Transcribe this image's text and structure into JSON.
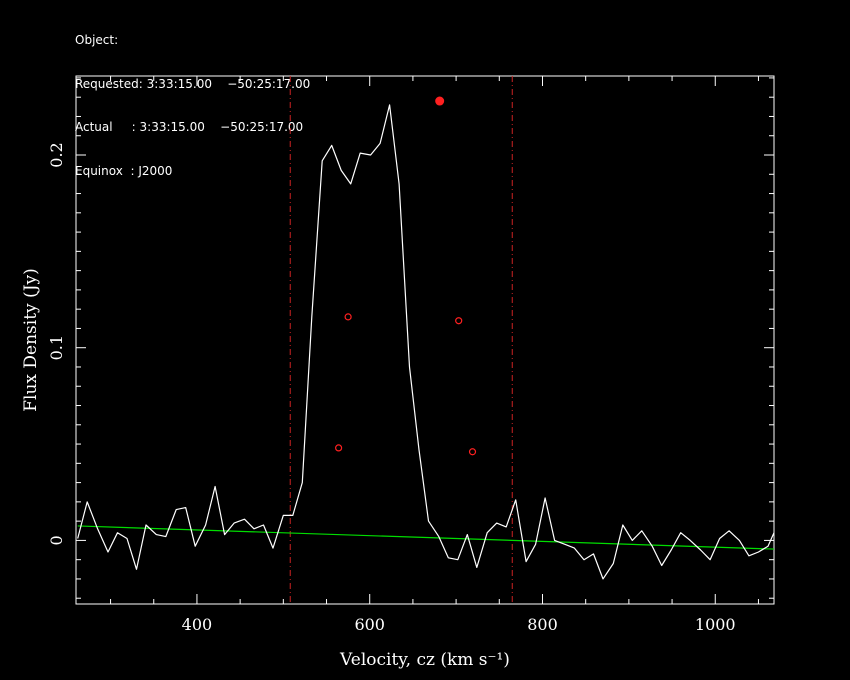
{
  "header": {
    "object_label": "Object:",
    "requested_label": "Requested:",
    "requested_ra": "3:33:15.00",
    "requested_dec": "−50:25:17.00",
    "actual_label": "Actual     :",
    "actual_ra": "3:33:15.00",
    "actual_dec": "−50:25:17.00",
    "equinox_label": "Equinox  :",
    "equinox_value": "J2000"
  },
  "chart_data": {
    "type": "line",
    "xlabel": "Velocity, cz (km s⁻¹)",
    "ylabel": "Flux Density (Jy)",
    "xlim": [
      260,
      1068
    ],
    "ylim": [
      -0.033,
      0.241
    ],
    "xticks": [
      400,
      600,
      800,
      1000
    ],
    "yticks": [
      0,
      0.1,
      0.2
    ],
    "ytick_labels": [
      "0",
      "0.1",
      "0.2"
    ],
    "grid": false,
    "colors": {
      "spectrum": "#ffffff",
      "baseline": "#00dd00",
      "markers": "#ff2020",
      "window_lines": "#cc2222",
      "axes": "#ffffff"
    },
    "series": [
      {
        "role": "spectrum",
        "x": [
          262,
          273,
          285,
          297,
          308,
          319,
          330,
          341,
          353,
          364,
          376,
          387,
          398,
          410,
          421,
          432,
          443,
          455,
          466,
          477,
          488,
          500,
          511,
          522,
          533,
          545,
          556,
          567,
          578,
          589,
          601,
          612,
          623,
          634,
          646,
          657,
          668,
          680,
          691,
          702,
          713,
          724,
          736,
          747,
          758,
          769,
          781,
          792,
          803,
          814,
          826,
          837,
          848,
          859,
          870,
          882,
          893,
          904,
          915,
          927,
          938,
          949,
          960,
          971,
          983,
          994,
          1005,
          1016,
          1028,
          1039,
          1050,
          1061,
          1068
        ],
        "y": [
          0.001,
          0.02,
          0.006,
          -0.006,
          0.004,
          0.001,
          -0.015,
          0.008,
          0.003,
          0.002,
          0.016,
          0.017,
          -0.003,
          0.008,
          0.028,
          0.003,
          0.009,
          0.011,
          0.006,
          0.008,
          -0.004,
          0.013,
          0.013,
          0.03,
          0.116,
          0.197,
          0.205,
          0.192,
          0.185,
          0.201,
          0.2,
          0.206,
          0.226,
          0.185,
          0.09,
          0.047,
          0.01,
          0.002,
          -0.009,
          -0.01,
          0.003,
          -0.014,
          0.004,
          0.009,
          0.007,
          0.021,
          -0.011,
          -0.002,
          0.022,
          0.0,
          -0.002,
          -0.004,
          -0.01,
          -0.007,
          -0.02,
          -0.012,
          0.008,
          0.0,
          0.005,
          -0.003,
          -0.013,
          -0.005,
          0.004,
          0.0,
          -0.005,
          -0.01,
          0.001,
          0.005,
          0.0,
          -0.008,
          -0.006,
          -0.003,
          0.004
        ]
      },
      {
        "role": "baseline",
        "x": [
          262,
          1068
        ],
        "y": [
          0.0075,
          -0.0045
        ]
      }
    ],
    "window_lines_x": [
      508,
      765
    ],
    "peak_marker": {
      "x": 681,
      "y": 0.228
    },
    "width_markers": [
      {
        "x": 564,
        "y": 0.048
      },
      {
        "x": 575,
        "y": 0.116
      },
      {
        "x": 703,
        "y": 0.114
      },
      {
        "x": 719,
        "y": 0.046
      }
    ]
  }
}
